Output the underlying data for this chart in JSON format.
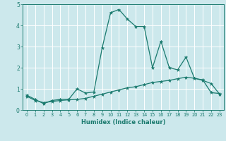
{
  "xlabel": "Humidex (Indice chaleur)",
  "x_values": [
    0,
    1,
    2,
    3,
    4,
    5,
    6,
    7,
    8,
    9,
    10,
    11,
    12,
    13,
    14,
    15,
    16,
    17,
    18,
    19,
    20,
    21,
    22,
    23
  ],
  "line1_y": [
    0.7,
    0.5,
    0.3,
    0.45,
    0.5,
    0.5,
    1.0,
    0.8,
    0.85,
    2.95,
    4.6,
    4.75,
    4.3,
    3.95,
    3.95,
    2.0,
    3.25,
    2.0,
    1.9,
    2.5,
    1.5,
    1.4,
    1.25,
    0.75
  ],
  "line2_y": [
    0.65,
    0.45,
    0.35,
    0.4,
    0.45,
    0.48,
    0.5,
    0.55,
    0.65,
    0.75,
    0.85,
    0.95,
    1.05,
    1.1,
    1.2,
    1.3,
    1.35,
    1.4,
    1.48,
    1.55,
    1.5,
    1.42,
    0.82,
    0.78
  ],
  "line_color": "#1a7a6e",
  "bg_color": "#cce8ec",
  "grid_color": "#ffffff",
  "ylim": [
    0,
    5
  ],
  "xlim": [
    -0.5,
    23.5
  ],
  "yticks": [
    0,
    1,
    2,
    3,
    4,
    5
  ],
  "xticks": [
    0,
    1,
    2,
    3,
    4,
    5,
    6,
    7,
    8,
    9,
    10,
    11,
    12,
    13,
    14,
    15,
    16,
    17,
    18,
    19,
    20,
    21,
    22,
    23
  ]
}
